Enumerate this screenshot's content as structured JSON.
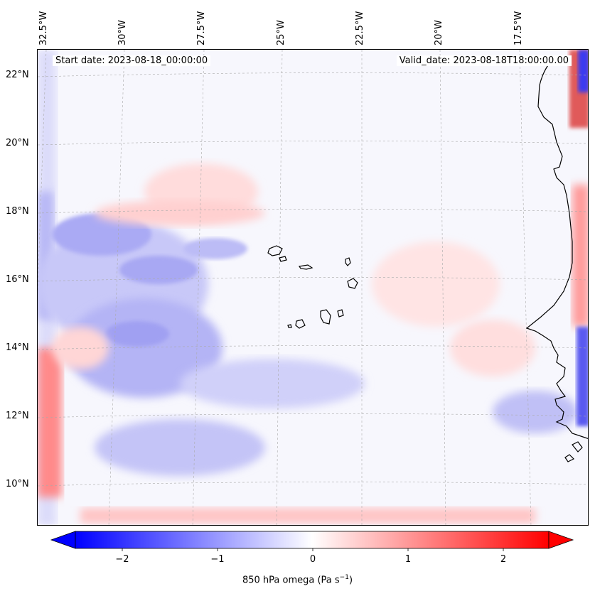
{
  "map": {
    "start_date": "Start date: 2023-08-18_00:00:00",
    "valid_date": "Valid_date: 2023-08-18T18:00:00.00",
    "lon_labels": [
      "32.5°W",
      "30°W",
      "27.5°W",
      "25°W",
      "22.5°W",
      "20°W",
      "17.5°W"
    ],
    "lat_labels": [
      "22°N",
      "20°N",
      "18°N",
      "16°N",
      "14°N",
      "12°N",
      "10°N"
    ],
    "extent": {
      "lon_min": -33,
      "lon_max": -15.6,
      "lat_min": 8.9,
      "lat_max": 22.8
    },
    "features": [
      "Cape Verde islands coastline",
      "West African coastline (Mauritania, Senegal, Gambia, Guinea-Bissau)"
    ]
  },
  "colorbar": {
    "label_main": "850 hPa omega (Pa s",
    "label_sup": "−1",
    "label_end": ")",
    "ticks": [
      "−2",
      "−1",
      "0",
      "1",
      "2"
    ],
    "tick_values": [
      -2,
      -1,
      0,
      1,
      2
    ],
    "range": [
      -2.6,
      2.5
    ],
    "colormap": "bwr",
    "colors": {
      "negative": "#0000ff",
      "zero": "#ffffff",
      "positive": "#ff0000"
    }
  }
}
